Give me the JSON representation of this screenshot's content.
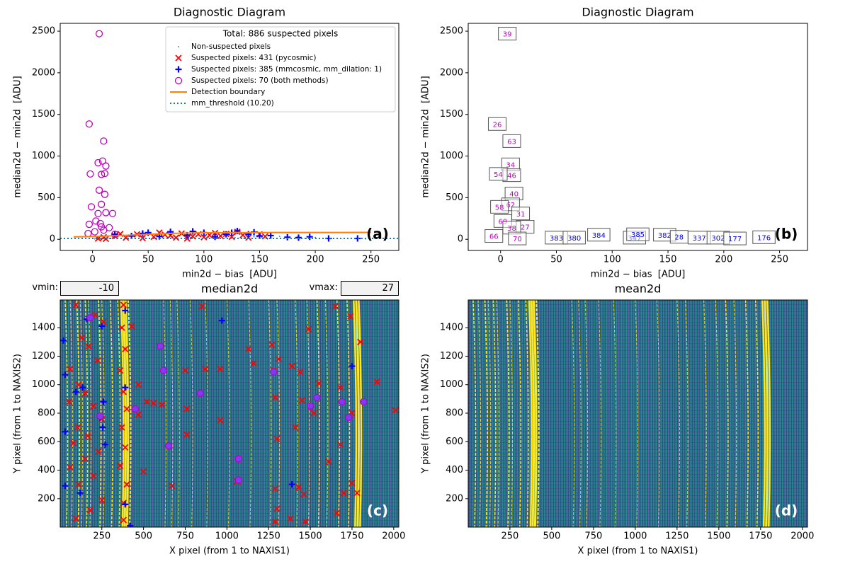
{
  "chart_data": [
    {
      "type": "scatter",
      "title": "Diagnostic Diagram",
      "xlabel": "min2d − bias  [ADU]",
      "ylabel": "median2d − min2d  [ADU]",
      "xlim": [
        -29,
        275
      ],
      "ylim": [
        -134,
        2594
      ],
      "xticks": [
        0,
        50,
        100,
        150,
        200,
        250
      ],
      "yticks": [
        0,
        500,
        1000,
        1500,
        2000,
        2500
      ],
      "tag": "(a)",
      "tag_color": "#000000",
      "legend": {
        "title": "Total: 886 suspected pixels",
        "position": "upper right"
      },
      "series": [
        {
          "name": "Non-suspected pixels",
          "color": "#1f77b4",
          "marker": "dot",
          "x": [
            2,
            8,
            15,
            22,
            30,
            38,
            46,
            55,
            63,
            72,
            80,
            88,
            96,
            104,
            112,
            120,
            128,
            136,
            145,
            152,
            160,
            168,
            176,
            184,
            192,
            200,
            210,
            220,
            232,
            245
          ],
          "values": [
            5,
            12,
            8,
            20,
            6,
            15,
            25,
            10,
            18,
            30,
            12,
            22,
            8,
            28,
            14,
            35,
            20,
            10,
            30,
            25,
            15,
            35,
            20,
            28,
            10,
            22,
            15,
            8,
            12,
            5
          ]
        },
        {
          "name": "Suspected pixels: 431 (pycosmic)",
          "color": "#ff0000",
          "marker": "x",
          "x": [
            5,
            10,
            12,
            20,
            25,
            30,
            40,
            45,
            55,
            60,
            65,
            70,
            75,
            80,
            85,
            90,
            95,
            100,
            105,
            110,
            115,
            120,
            125,
            130,
            135,
            140,
            150,
            155
          ],
          "values": [
            10,
            25,
            5,
            40,
            65,
            20,
            60,
            15,
            30,
            80,
            55,
            45,
            20,
            70,
            10,
            35,
            60,
            25,
            50,
            75,
            40,
            65,
            30,
            90,
            50,
            20,
            60,
            35
          ]
        },
        {
          "name": "Suspected pixels: 385 (mmcosmic, mm_dilation: 1)",
          "color": "#0000ff",
          "marker": "plus",
          "x": [
            20,
            35,
            45,
            50,
            60,
            70,
            85,
            90,
            100,
            110,
            120,
            125,
            130,
            140,
            145,
            150,
            160,
            175,
            185,
            195,
            212,
            238
          ],
          "values": [
            60,
            40,
            70,
            80,
            35,
            90,
            50,
            95,
            80,
            30,
            60,
            80,
            100,
            60,
            85,
            40,
            45,
            25,
            20,
            30,
            10,
            10
          ]
        },
        {
          "name": "Suspected pixels: 70 (both methods)",
          "color": "#bf00bf",
          "marker": "circle",
          "x": [
            6,
            -3,
            10,
            9,
            5,
            12,
            -2,
            11,
            8,
            6,
            11,
            -1,
            8,
            12,
            18,
            5,
            3,
            15,
            -3,
            8,
            10,
            2,
            20,
            7,
            -4
          ],
          "values": [
            2470,
            1385,
            1180,
            940,
            920,
            880,
            785,
            790,
            780,
            590,
            540,
            390,
            420,
            320,
            310,
            310,
            220,
            140,
            180,
            150,
            110,
            90,
            60,
            190,
            70
          ]
        },
        {
          "name": "Detection boundary",
          "color": "#ff7f0e",
          "marker": "line",
          "x": [
            -17,
            0,
            25,
            50,
            75,
            100,
            125,
            150,
            175,
            200,
            225,
            250
          ],
          "values": [
            30,
            33,
            45,
            60,
            72,
            78,
            80,
            81,
            82,
            82,
            82,
            83
          ]
        },
        {
          "name": "mm_threshold (10.20)",
          "color": "#1f77b4",
          "marker": "hline",
          "values": [
            10.2
          ]
        }
      ]
    },
    {
      "type": "scatter",
      "title": "Diagnostic Diagram",
      "xlabel": "min2d − bias  [ADU]",
      "ylabel": "median2d − min2d  [ADU]",
      "xlim": [
        -29,
        275
      ],
      "ylim": [
        -134,
        2594
      ],
      "xticks": [
        0,
        50,
        100,
        150,
        200,
        250
      ],
      "yticks": [
        0,
        500,
        1000,
        1500,
        2000,
        2500
      ],
      "tag": "(b)",
      "tag_color": "#000000",
      "annotations": [
        {
          "label": 39,
          "x": 6,
          "y": 2470,
          "color": "#bf00bf"
        },
        {
          "label": 26,
          "x": -3,
          "y": 1385,
          "color": "#bf00bf"
        },
        {
          "label": 63,
          "x": 10,
          "y": 1180,
          "color": "#bf00bf"
        },
        {
          "label": 34,
          "x": 9,
          "y": 900,
          "color": "#bf00bf"
        },
        {
          "label": 46,
          "x": 10,
          "y": 770,
          "color": "#bf00bf"
        },
        {
          "label": 54,
          "x": -2,
          "y": 785,
          "color": "#bf00bf"
        },
        {
          "label": 40,
          "x": 12,
          "y": 550,
          "color": "#bf00bf"
        },
        {
          "label": 62,
          "x": 9,
          "y": 420,
          "color": "#bf00bf"
        },
        {
          "label": 58,
          "x": -1,
          "y": 390,
          "color": "#bf00bf"
        },
        {
          "label": 31,
          "x": 18,
          "y": 310,
          "color": "#bf00bf"
        },
        {
          "label": 69,
          "x": 2,
          "y": 220,
          "color": "#bf00bf"
        },
        {
          "label": 27,
          "x": 22,
          "y": 150,
          "color": "#bf00bf"
        },
        {
          "label": 38,
          "x": 10,
          "y": 140,
          "color": "#bf00bf"
        },
        {
          "label": 66,
          "x": -6,
          "y": 40,
          "color": "#bf00bf"
        },
        {
          "label": 70,
          "x": 15,
          "y": 10,
          "color": "#bf00bf"
        },
        {
          "label": 383,
          "x": 50,
          "y": 20,
          "color": "#0000ff"
        },
        {
          "label": 380,
          "x": 66,
          "y": 20,
          "color": "#0000ff"
        },
        {
          "label": 384,
          "x": 88,
          "y": 55,
          "color": "#0000ff"
        },
        {
          "label": 347,
          "x": 120,
          "y": 20,
          "color": "#0000ff"
        },
        {
          "label": 385,
          "x": 123,
          "y": 60,
          "color": "#0000ff"
        },
        {
          "label": 382,
          "x": 147,
          "y": 55,
          "color": "#0000ff"
        },
        {
          "label": 28,
          "x": 160,
          "y": 30,
          "color": "#0000ff"
        },
        {
          "label": 337,
          "x": 178,
          "y": 20,
          "color": "#0000ff"
        },
        {
          "label": 302,
          "x": 195,
          "y": 20,
          "color": "#0000ff"
        },
        {
          "label": 177,
          "x": 210,
          "y": 10,
          "color": "#0000ff"
        },
        {
          "label": 176,
          "x": 236,
          "y": 25,
          "color": "#0000ff"
        }
      ]
    },
    {
      "type": "image",
      "title": "median2d",
      "xlabel": "X pixel (from 1 to NAXIS1)",
      "ylabel": "Y pixel (from 1 to NAXIS2)",
      "xlim": [
        0.5,
        2030.5
      ],
      "ylim": [
        0.5,
        1594.5
      ],
      "xticks": [
        250,
        500,
        750,
        1000,
        1250,
        1500,
        1750,
        2000
      ],
      "yticks": [
        200,
        400,
        600,
        800,
        1000,
        1200,
        1400
      ],
      "tag": "(c)",
      "tag_color": "#ffffff",
      "vmin_label": "vmin:",
      "vmin": -10,
      "vmax_label": "vmax:",
      "vmax": 27,
      "series": [
        {
          "color": "#ff0000",
          "marker": "x",
          "x": [
            95,
            210,
            260,
            130,
            170,
            225,
            60,
            110,
            150,
            55,
            200,
            250,
            105,
            165,
            80,
            230,
            150,
            60,
            200,
            110,
            250,
            180,
            95,
            380,
            370,
            390,
            360,
            380,
            400,
            370,
            390,
            360,
            400,
            380,
            380,
            430,
            470,
            520,
            560,
            610,
            750,
            760,
            870,
            850,
            960,
            960,
            500,
            670,
            1060,
            1130,
            1160,
            1270,
            1280,
            1310,
            1290,
            1300,
            1290,
            1300,
            1380,
            1390,
            1440,
            1450,
            1410,
            1430,
            1460,
            1490,
            1520,
            1550,
            1610,
            1650,
            1680,
            1680,
            1700,
            1740,
            1750,
            1750,
            1780,
            1800,
            2010,
            1900,
            1470,
            1290,
            1660,
            760,
            470
          ],
          "values": [
            1560,
            1490,
            1440,
            1330,
            1270,
            1170,
            1110,
            1000,
            940,
            880,
            850,
            760,
            700,
            640,
            590,
            530,
            480,
            420,
            360,
            300,
            190,
            120,
            60,
            1560,
            1400,
            1250,
            1100,
            950,
            830,
            700,
            560,
            430,
            300,
            170,
            50,
            1410,
            1000,
            880,
            870,
            860,
            1100,
            830,
            1110,
            1550,
            1110,
            750,
            390,
            290,
            320,
            1250,
            1150,
            1280,
            1100,
            1180,
            910,
            620,
            270,
            130,
            60,
            1130,
            1090,
            890,
            700,
            280,
            230,
            1390,
            800,
            1010,
            460,
            1550,
            980,
            580,
            240,
            1480,
            800,
            310,
            240,
            1300,
            820,
            1020,
            40,
            40,
            100,
            650,
            790
          ]
        },
        {
          "color": "#0000ff",
          "marker": "plus",
          "x": [
            20,
            30,
            95,
            135,
            160,
            250,
            260,
            240,
            255,
            270,
            30,
            30,
            120,
            390,
            390,
            390,
            970,
            1390,
            1750,
            420
          ],
          "values": [
            1310,
            1070,
            950,
            980,
            1460,
            1410,
            880,
            770,
            700,
            580,
            670,
            290,
            240,
            1520,
            980,
            160,
            1450,
            300,
            1130,
            10
          ]
        },
        {
          "color": "#bf00bf",
          "facecolor": "#7a3cf5",
          "marker": "circle",
          "x": [
            600,
            620,
            840,
            1280,
            1500,
            1540,
            1690,
            1730,
            1820,
            650,
            1070,
            1070,
            240,
            450,
            180
          ],
          "values": [
            1270,
            1100,
            940,
            1090,
            850,
            910,
            880,
            770,
            880,
            570,
            480,
            330,
            780,
            830,
            1470
          ]
        }
      ]
    },
    {
      "type": "image",
      "title": "mean2d",
      "xlabel": "X pixel (from 1 to NAXIS1)",
      "ylabel": "Y pixel (from 1 to NAXIS2)",
      "xlim": [
        0.5,
        2030.5
      ],
      "ylim": [
        0.5,
        1594.5
      ],
      "xticks": [
        250,
        500,
        750,
        1000,
        1250,
        1500,
        1750,
        2000
      ],
      "yticks": [
        200,
        400,
        600,
        800,
        1000,
        1200,
        1400
      ],
      "tag": "(d)",
      "tag_color": "#ffffff"
    }
  ]
}
